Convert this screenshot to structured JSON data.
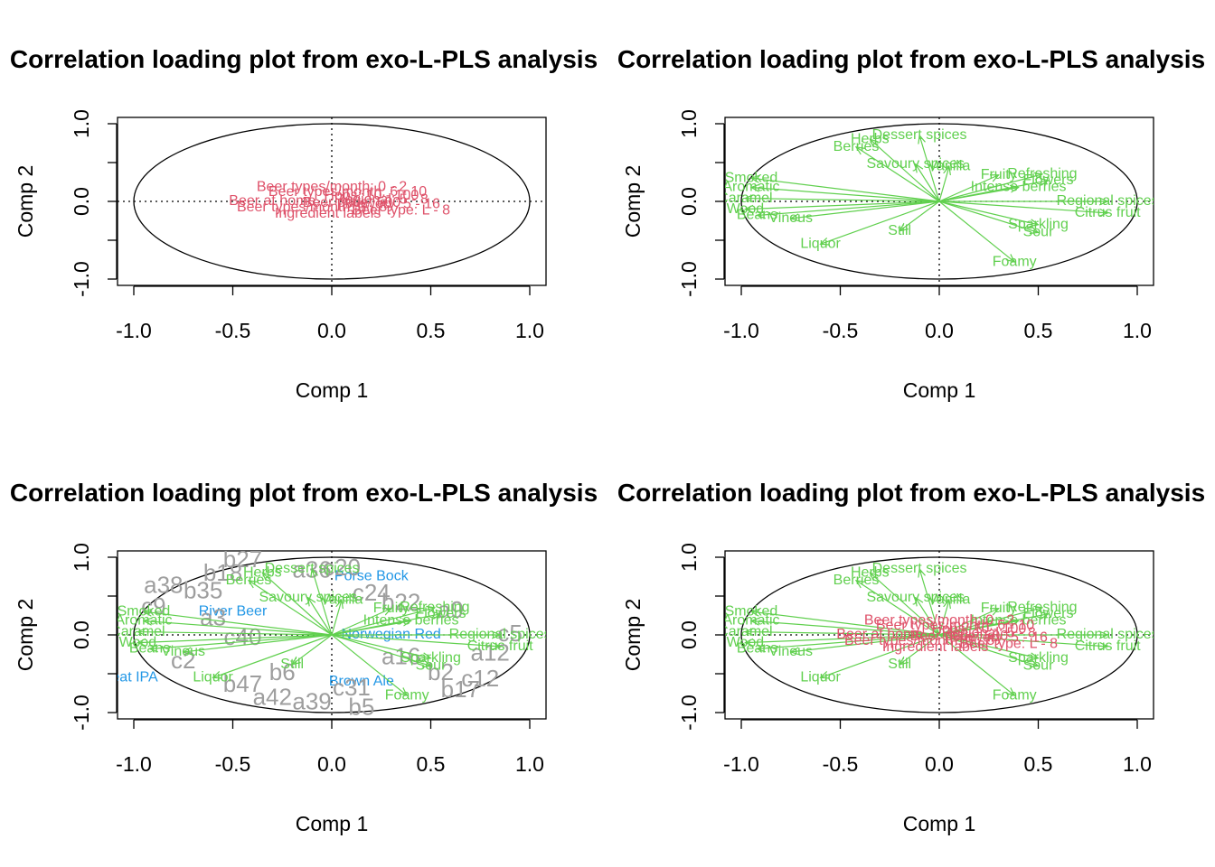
{
  "colors": {
    "panel1": "#DF536B",
    "panel2": "#61D04F",
    "panel3_obs": "#9E9E9E",
    "panel3_x": "#61D04F",
    "panel3_y": "#2297E6",
    "panel4_x": "#61D04F",
    "panel4_y": "#DF536B"
  },
  "chart_data": [
    {
      "type": "scatter",
      "title": "Correlation loading plot from exo-L-PLS analysis",
      "xlabel": "Comp 1",
      "ylabel": "Comp 2",
      "xlim": [
        -1.0,
        1.0
      ],
      "ylim": [
        -1.0,
        1.0
      ],
      "xticks": [
        "-1.0",
        "-0.5",
        "0.0",
        "0.5",
        "1.0"
      ],
      "yticks": [
        "-1.0",
        "0.0",
        "1.0"
      ],
      "unit_circle": true,
      "reference_lines": "dotted at x=0 and y=0",
      "series": [
        {
          "role": "label",
          "arrows": false,
          "points": [
            {
              "label": "Beer types/month: 0 - 2",
              "x": 0.0,
              "y": 0.18
            },
            {
              "label": "Beer types/month: 6 - 10",
              "x": 0.08,
              "y": 0.12
            },
            {
              "label": "Hops: 10 - 100",
              "x": 0.2,
              "y": 0.07
            },
            {
              "label": "Regional: 5 - 8",
              "x": 0.25,
              "y": 0.02
            },
            {
              "label": "Beer price: 500",
              "x": 0.1,
              "y": -0.02
            },
            {
              "label": "Brewery: 5 - 16",
              "x": 0.3,
              "y": -0.04
            },
            {
              "label": "Beer type: L - 8",
              "x": 0.35,
              "y": -0.12
            },
            {
              "label": "Ingredient labels",
              "x": -0.02,
              "y": -0.16
            },
            {
              "label": "Beer types/month: 3 - 5",
              "x": -0.1,
              "y": -0.08
            },
            {
              "label": "Beer at home",
              "x": -0.3,
              "y": 0.0
            }
          ]
        }
      ]
    },
    {
      "type": "scatter",
      "title": "Correlation loading plot from exo-L-PLS analysis",
      "xlabel": "Comp 1",
      "ylabel": "Comp 2",
      "xlim": [
        -1.0,
        1.0
      ],
      "ylim": [
        -1.0,
        1.0
      ],
      "xticks": [
        "-1.0",
        "-0.5",
        "0.0",
        "0.5",
        "1.0"
      ],
      "yticks": [
        "-1.0",
        "0.0",
        "1.0"
      ],
      "unit_circle": true,
      "reference_lines": "dotted at x=0 and y=0",
      "series": [
        {
          "role": "sensory",
          "arrows": true,
          "points": [
            {
              "label": "Dessert spices",
              "x": -0.1,
              "y": 0.85
            },
            {
              "label": "Herbs",
              "x": -0.35,
              "y": 0.8
            },
            {
              "label": "Berries",
              "x": -0.42,
              "y": 0.7
            },
            {
              "label": "Savoury spices",
              "x": -0.12,
              "y": 0.48
            },
            {
              "label": "Vanilla",
              "x": 0.05,
              "y": 0.45
            },
            {
              "label": "Fruity",
              "x": 0.3,
              "y": 0.34
            },
            {
              "label": "Refreshing",
              "x": 0.52,
              "y": 0.35
            },
            {
              "label": "Flowers",
              "x": 0.55,
              "y": 0.27
            },
            {
              "label": "Intense berries",
              "x": 0.4,
              "y": 0.18
            },
            {
              "label": "Regional spices",
              "x": 0.85,
              "y": 0.0
            },
            {
              "label": "Citrus fruit",
              "x": 0.85,
              "y": -0.15
            },
            {
              "label": "Sparkling",
              "x": 0.5,
              "y": -0.3
            },
            {
              "label": "Sour",
              "x": 0.5,
              "y": -0.4
            },
            {
              "label": "Foamy",
              "x": 0.38,
              "y": -0.78
            },
            {
              "label": "Still",
              "x": -0.2,
              "y": -0.38
            },
            {
              "label": "Liquor",
              "x": -0.6,
              "y": -0.55
            },
            {
              "label": "Vinous",
              "x": -0.75,
              "y": -0.22
            },
            {
              "label": "Beans",
              "x": -0.92,
              "y": -0.18
            },
            {
              "label": "Wood",
              "x": -0.98,
              "y": -0.1
            },
            {
              "label": "Caramel",
              "x": -0.98,
              "y": 0.04
            },
            {
              "label": "Aromatic",
              "x": -0.95,
              "y": 0.18
            },
            {
              "label": "Smoked",
              "x": -0.95,
              "y": 0.3
            }
          ]
        }
      ]
    },
    {
      "type": "scatter",
      "title": "Correlation loading plot from exo-L-PLS analysis",
      "xlabel": "Comp 1",
      "ylabel": "Comp 2",
      "xlim": [
        -1.0,
        1.0
      ],
      "ylim": [
        -1.0,
        1.0
      ],
      "xticks": [
        "-1.0",
        "-0.5",
        "0.0",
        "0.5",
        "1.0"
      ],
      "yticks": [
        "-1.0",
        "0.0",
        "1.0"
      ],
      "unit_circle": true,
      "reference_lines": "dotted at x=0 and y=0",
      "series": [
        {
          "role": "beer",
          "arrows": false,
          "points": [
            {
              "label": "Porse Bock",
              "x": 0.2,
              "y": 0.75
            },
            {
              "label": "River Beer",
              "x": -0.5,
              "y": 0.3
            },
            {
              "label": "Norwegian Red",
              "x": 0.3,
              "y": 0.0
            },
            {
              "label": "Brown Ale",
              "x": 0.15,
              "y": -0.6
            },
            {
              "label": "Wheat IPA",
              "x": -1.05,
              "y": -0.55
            }
          ]
        },
        {
          "role": "consumer",
          "arrows": false,
          "points": [
            {
              "label": "b27",
              "x": -0.45,
              "y": 0.95
            },
            {
              "label": "a36",
              "x": -0.1,
              "y": 0.82
            },
            {
              "label": "c20",
              "x": 0.05,
              "y": 0.85
            },
            {
              "label": "b18",
              "x": -0.55,
              "y": 0.78
            },
            {
              "label": "c24",
              "x": 0.2,
              "y": 0.52
            },
            {
              "label": "a38",
              "x": -0.85,
              "y": 0.62
            },
            {
              "label": "b35",
              "x": -0.65,
              "y": 0.55
            },
            {
              "label": "c9",
              "x": -0.9,
              "y": 0.35
            },
            {
              "label": "b22",
              "x": 0.35,
              "y": 0.4
            },
            {
              "label": "a9",
              "x": 0.6,
              "y": 0.3
            },
            {
              "label": "c5",
              "x": 0.9,
              "y": 0.0
            },
            {
              "label": "a12",
              "x": 0.8,
              "y": -0.25
            },
            {
              "label": "b2",
              "x": 0.55,
              "y": -0.5
            },
            {
              "label": "c12",
              "x": 0.75,
              "y": -0.58
            },
            {
              "label": "b17",
              "x": 0.65,
              "y": -0.72
            },
            {
              "label": "a42",
              "x": -0.3,
              "y": -0.82
            },
            {
              "label": "a39",
              "x": -0.1,
              "y": -0.88
            },
            {
              "label": "b47",
              "x": -0.45,
              "y": -0.65
            },
            {
              "label": "c40",
              "x": -0.45,
              "y": -0.05
            },
            {
              "label": "b6",
              "x": -0.25,
              "y": -0.5
            },
            {
              "label": "a16",
              "x": 0.35,
              "y": -0.3
            },
            {
              "label": "c31",
              "x": 0.1,
              "y": -0.7
            },
            {
              "label": "b5",
              "x": 0.15,
              "y": -0.95
            },
            {
              "label": "a3",
              "x": -0.6,
              "y": 0.2
            },
            {
              "label": "c2",
              "x": -0.75,
              "y": -0.35
            }
          ]
        },
        {
          "role": "sensory",
          "arrows": true,
          "points": [
            {
              "label": "Dessert spices",
              "x": -0.1,
              "y": 0.85
            },
            {
              "label": "Herbs",
              "x": -0.35,
              "y": 0.8
            },
            {
              "label": "Berries",
              "x": -0.42,
              "y": 0.7
            },
            {
              "label": "Savoury spices",
              "x": -0.12,
              "y": 0.48
            },
            {
              "label": "Vanilla",
              "x": 0.05,
              "y": 0.45
            },
            {
              "label": "Fruity",
              "x": 0.3,
              "y": 0.34
            },
            {
              "label": "Refreshing",
              "x": 0.52,
              "y": 0.35
            },
            {
              "label": "Flowers",
              "x": 0.55,
              "y": 0.27
            },
            {
              "label": "Intense berries",
              "x": 0.4,
              "y": 0.18
            },
            {
              "label": "Regional spices",
              "x": 0.85,
              "y": 0.0
            },
            {
              "label": "Citrus fruit",
              "x": 0.85,
              "y": -0.15
            },
            {
              "label": "Sparkling",
              "x": 0.5,
              "y": -0.3
            },
            {
              "label": "Sour",
              "x": 0.5,
              "y": -0.4
            },
            {
              "label": "Foamy",
              "x": 0.38,
              "y": -0.78
            },
            {
              "label": "Still",
              "x": -0.2,
              "y": -0.38
            },
            {
              "label": "Liquor",
              "x": -0.6,
              "y": -0.55
            },
            {
              "label": "Vinous",
              "x": -0.75,
              "y": -0.22
            },
            {
              "label": "Beans",
              "x": -0.92,
              "y": -0.18
            },
            {
              "label": "Wood",
              "x": -0.98,
              "y": -0.1
            },
            {
              "label": "Caramel",
              "x": -0.98,
              "y": 0.04
            },
            {
              "label": "Aromatic",
              "x": -0.95,
              "y": 0.18
            },
            {
              "label": "Smoked",
              "x": -0.95,
              "y": 0.3
            }
          ]
        }
      ]
    },
    {
      "type": "scatter",
      "title": "Correlation loading plot from exo-L-PLS analysis",
      "xlabel": "Comp 1",
      "ylabel": "Comp 2",
      "xlim": [
        -1.0,
        1.0
      ],
      "ylim": [
        -1.0,
        1.0
      ],
      "xticks": [
        "-1.0",
        "-0.5",
        "0.0",
        "0.5",
        "1.0"
      ],
      "yticks": [
        "-1.0",
        "0.0",
        "1.0"
      ],
      "unit_circle": true,
      "reference_lines": "dotted at x=0 and y=0",
      "series": [
        {
          "role": "sensory",
          "arrows": true,
          "points": [
            {
              "label": "Dessert spices",
              "x": -0.1,
              "y": 0.85
            },
            {
              "label": "Herbs",
              "x": -0.35,
              "y": 0.8
            },
            {
              "label": "Berries",
              "x": -0.42,
              "y": 0.7
            },
            {
              "label": "Savoury spices",
              "x": -0.12,
              "y": 0.48
            },
            {
              "label": "Vanilla",
              "x": 0.05,
              "y": 0.45
            },
            {
              "label": "Fruity",
              "x": 0.3,
              "y": 0.34
            },
            {
              "label": "Refreshing",
              "x": 0.52,
              "y": 0.35
            },
            {
              "label": "Flowers",
              "x": 0.55,
              "y": 0.27
            },
            {
              "label": "Intense berries",
              "x": 0.4,
              "y": 0.18
            },
            {
              "label": "Regional spices",
              "x": 0.85,
              "y": 0.0
            },
            {
              "label": "Citrus fruit",
              "x": 0.85,
              "y": -0.15
            },
            {
              "label": "Sparkling",
              "x": 0.5,
              "y": -0.3
            },
            {
              "label": "Sour",
              "x": 0.5,
              "y": -0.4
            },
            {
              "label": "Foamy",
              "x": 0.38,
              "y": -0.78
            },
            {
              "label": "Still",
              "x": -0.2,
              "y": -0.38
            },
            {
              "label": "Liquor",
              "x": -0.6,
              "y": -0.55
            },
            {
              "label": "Vinous",
              "x": -0.75,
              "y": -0.22
            },
            {
              "label": "Beans",
              "x": -0.92,
              "y": -0.18
            },
            {
              "label": "Wood",
              "x": -0.98,
              "y": -0.1
            },
            {
              "label": "Caramel",
              "x": -0.98,
              "y": 0.04
            },
            {
              "label": "Aromatic",
              "x": -0.95,
              "y": 0.18
            },
            {
              "label": "Smoked",
              "x": -0.95,
              "y": 0.3
            }
          ]
        },
        {
          "role": "label",
          "arrows": false,
          "points": [
            {
              "label": "Beer types/month: 0 - 2",
              "x": 0.0,
              "y": 0.18
            },
            {
              "label": "Beer types/month: 6 - 10",
              "x": 0.08,
              "y": 0.12
            },
            {
              "label": "Hops: 10 - 100",
              "x": 0.2,
              "y": 0.07
            },
            {
              "label": "Regional: 5 - 8",
              "x": 0.25,
              "y": 0.02
            },
            {
              "label": "Beer price: 500",
              "x": 0.1,
              "y": -0.02
            },
            {
              "label": "Brewery: 5 - 16",
              "x": 0.3,
              "y": -0.04
            },
            {
              "label": "Beer type: L - 8",
              "x": 0.35,
              "y": -0.12
            },
            {
              "label": "Ingredient labels",
              "x": -0.02,
              "y": -0.16
            },
            {
              "label": "Beer types/month: 3 - 5",
              "x": -0.1,
              "y": -0.08
            },
            {
              "label": "Beer at home",
              "x": -0.3,
              "y": 0.0
            }
          ]
        }
      ]
    }
  ]
}
